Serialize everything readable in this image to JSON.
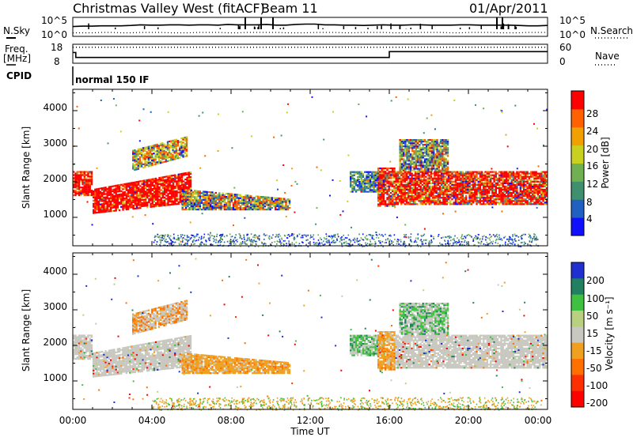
{
  "header": {
    "station": "Christmas Valley West (fitACF)",
    "beam": "Beam 11",
    "date": "01/Apr/2011"
  },
  "chart_data": [
    {
      "type": "line",
      "name": "nsky-nsearch-panel",
      "left_label": "N.Sky",
      "right_label": "N.Search",
      "y_ticks_left": [
        "10^5",
        "10^0"
      ],
      "y_ticks_right": [
        "10^5",
        "10^0"
      ],
      "ylim": [
        0,
        5
      ],
      "series": [
        {
          "values": [
            2.6,
            2.7,
            2.7,
            2.8,
            2.8,
            2.8,
            2.9,
            3.1,
            3.0,
            3.0,
            3.1,
            3.1,
            3.0,
            3.1,
            3.1,
            3.0,
            3.2,
            3.1,
            3.1,
            3.1,
            3.2,
            3.0,
            3.0,
            3.2,
            3.3,
            3.3,
            3.1,
            3.1,
            3.0,
            3.0,
            2.9,
            3.0,
            3.1,
            3.0,
            3.0,
            3.1,
            3.1,
            3.0,
            3.0,
            3.0,
            3.1,
            3.1,
            3.0,
            3.0,
            3.0,
            3.0,
            2.9,
            2.8,
            2.8,
            2.9
          ]
        },
        {
          "values": [
            0.8,
            0.8,
            0.8,
            0.9,
            0.9,
            0.8,
            0.8,
            0.9,
            0.9,
            0.9,
            0.8,
            0.8,
            0.8,
            0.9,
            0.9,
            0.9,
            0.8,
            0.8,
            0.9,
            0.9,
            0.9,
            0.9,
            0.8,
            0.8,
            0.8,
            0.9,
            0.9,
            0.9,
            0.8,
            0.8,
            0.9,
            0.9,
            0.9,
            0.8,
            0.8,
            0.8,
            0.9,
            0.9,
            0.9,
            0.8,
            0.8,
            0.9,
            0.9,
            0.9,
            0.8,
            0.8,
            0.8,
            0.9,
            0.9,
            0.9
          ]
        }
      ]
    },
    {
      "type": "line",
      "name": "freq-nave-panel",
      "left_label": "Freq.",
      "left_unit": "[MHz]",
      "right_label": "Nave",
      "y_ticks_left": [
        "18",
        "8"
      ],
      "y_ticks_right": [
        "60",
        "0"
      ],
      "series": [
        {
          "x": [
            0,
            0.15,
            0.15,
            1.0,
            1.0,
            16.0,
            16.0,
            24
          ],
          "values": [
            14,
            14,
            11,
            11,
            11,
            11,
            14.5,
            14.5
          ]
        },
        {
          "x": [
            0,
            24
          ],
          "values": [
            55,
            55
          ]
        }
      ]
    },
    {
      "type": "heatmap",
      "name": "power-panel",
      "ylabel": "Slant Range [km]",
      "y_ticks": [
        "1000",
        "2000",
        "3000",
        "4000"
      ],
      "ylim": [
        200,
        4600
      ],
      "xlim": [
        0,
        24
      ],
      "colorbar_label": "Power [dB]",
      "colorbar_ticks": [
        "4",
        "8",
        "12",
        "16",
        "20",
        "24",
        "28"
      ]
    },
    {
      "type": "heatmap",
      "name": "velocity-panel",
      "ylabel": "Slant Range [km]",
      "y_ticks": [
        "1000",
        "2000",
        "3000",
        "4000"
      ],
      "ylim": [
        200,
        4600
      ],
      "xlim": [
        0,
        24
      ],
      "colorbar_label": "Velocity [m s⁻¹]",
      "colorbar_ticks": [
        "200",
        "100",
        "50",
        "15",
        "-15",
        "-50",
        "-100",
        "-200"
      ]
    }
  ],
  "cpid": {
    "label": "CPID",
    "mode": "normal 150 IF"
  },
  "x_axis": {
    "label": "Time UT",
    "ticks": [
      "00:00",
      "04:00",
      "08:00",
      "12:00",
      "16:00",
      "20:00",
      "00:00"
    ]
  },
  "colors": {
    "ground_scatter": "#c8c8c0",
    "power_scale": [
      "#1010ff",
      "#2060c0",
      "#409070",
      "#70b050",
      "#c8d020",
      "#f0a000",
      "#ff6000",
      "#ff0000"
    ],
    "velocity_scale": [
      "#2030d0",
      "#208060",
      "#40c040",
      "#b8d080",
      "#c8c8c0",
      "#f0a020",
      "#ff7000",
      "#ff3000",
      "#ff0000"
    ]
  }
}
